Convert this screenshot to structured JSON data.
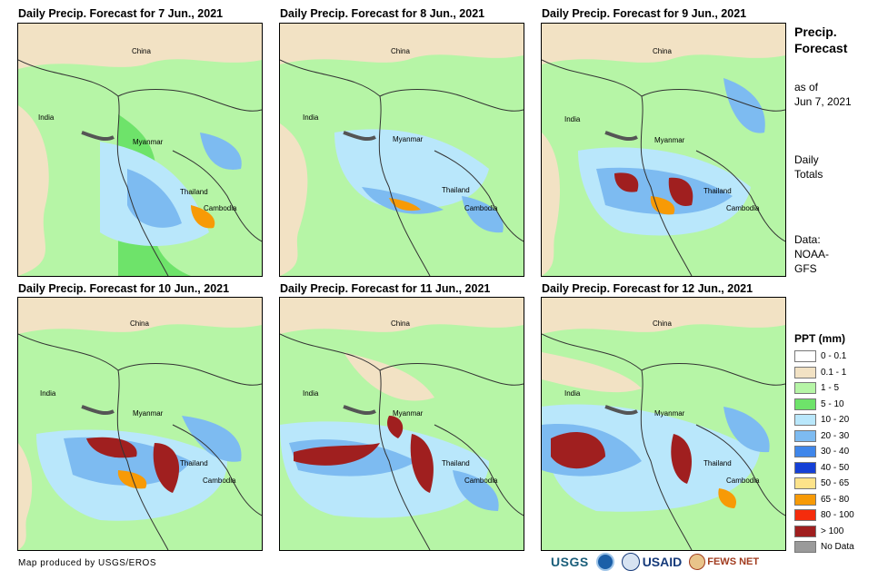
{
  "panels": [
    {
      "title": "Daily Precip. Forecast for 7 Jun., 2021"
    },
    {
      "title": "Daily Precip. Forecast for 8 Jun., 2021"
    },
    {
      "title": "Daily Precip. Forecast for 9 Jun., 2021"
    },
    {
      "title": "Daily Precip. Forecast for 10 Jun., 2021"
    },
    {
      "title": "Daily Precip. Forecast for 11 Jun., 2021"
    },
    {
      "title": "Daily Precip. Forecast for 12 Jun., 2021"
    }
  ],
  "place_labels": {
    "china": "China",
    "india": "India",
    "myanmar": "Myanmar",
    "thailand": "Thailand",
    "cambodia": "Cambodia"
  },
  "sidebar": {
    "title_line1": "Precip.",
    "title_line2": "Forecast",
    "asof_line1": "as of",
    "asof_line2": "Jun 7, 2021",
    "daily_line1": "Daily",
    "daily_line2": "Totals",
    "data_line1": "Data:",
    "data_line2": "NOAA-",
    "data_line3": "GFS"
  },
  "legend": {
    "title": "PPT (mm)",
    "items": [
      {
        "label": "0 - 0.1",
        "color": "#ffffff"
      },
      {
        "label": "0.1 - 1",
        "color": "#f2e2c4"
      },
      {
        "label": "1 - 5",
        "color": "#b6f5a6"
      },
      {
        "label": "5 - 10",
        "color": "#6ee36a"
      },
      {
        "label": "10 - 20",
        "color": "#b9e7fb"
      },
      {
        "label": "20 - 30",
        "color": "#7dbbf1"
      },
      {
        "label": "30 - 40",
        "color": "#3f86ea"
      },
      {
        "label": "40 - 50",
        "color": "#1540d6"
      },
      {
        "label": "50 - 65",
        "color": "#fde38a"
      },
      {
        "label": "65 - 80",
        "color": "#f79a06"
      },
      {
        "label": "80 - 100",
        "color": "#f52c0c"
      },
      {
        "label": "> 100",
        "color": "#a01f1f"
      },
      {
        "label": "No Data",
        "color": "#9a9a9a"
      }
    ]
  },
  "credit": "Map produced by USGS/EROS",
  "logos": {
    "usgs": "USGS",
    "usaid": "USAID",
    "fewsnet": "FEWS NET"
  }
}
